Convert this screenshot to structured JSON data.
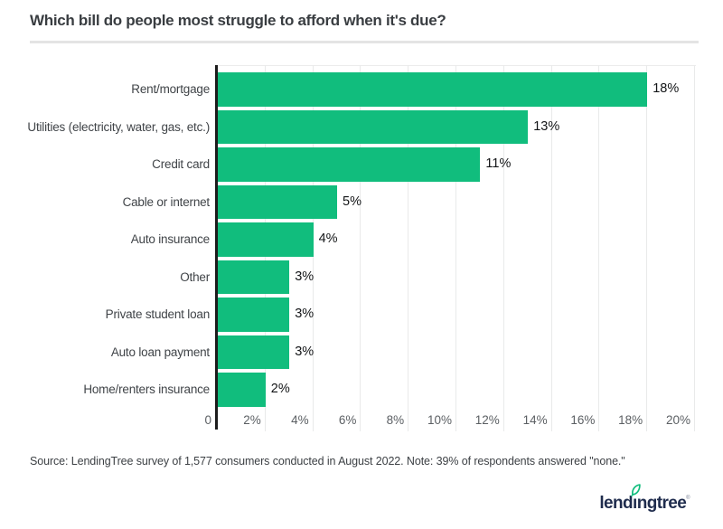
{
  "header": {
    "title": "Which bill do people most struggle to afford when it's due?"
  },
  "chart_data": {
    "type": "bar",
    "orientation": "horizontal",
    "title": "Which bill do people most struggle to afford when it's due?",
    "categories": [
      "Rent/mortgage",
      "Utilities (electricity, water, gas, etc.)",
      "Credit card",
      "Cable or internet",
      "Auto insurance",
      "Other",
      "Private student loan",
      "Auto loan payment",
      "Home/renters insurance"
    ],
    "values": [
      18,
      13,
      11,
      5,
      4,
      3,
      3,
      3,
      2
    ],
    "value_labels": [
      "18%",
      "13%",
      "11%",
      "5%",
      "4%",
      "3%",
      "3%",
      "3%",
      "2%"
    ],
    "xlabel": "",
    "ylabel": "",
    "xlim": [
      0,
      20
    ],
    "x_ticks": [
      "0",
      "2%",
      "4%",
      "6%",
      "8%",
      "10%",
      "12%",
      "14%",
      "16%",
      "18%",
      "20%"
    ],
    "grid": true,
    "legend": "none",
    "bar_color": "#11bd7d"
  },
  "footer": {
    "source_note": "Source: LendingTree survey of 1,577 consumers conducted in August 2022. Note: 39% of respondents answered \"none.\""
  },
  "branding": {
    "logo_part1": "lend",
    "logo_dotless_i": "ı",
    "logo_part2": "ngtree",
    "registered_mark": "®",
    "leaf_icon": "leaf-icon",
    "logo_color": "#1f2c4d",
    "leaf_color": "#11bd7d"
  },
  "colors": {
    "background": "#ffffff",
    "bar": "#11bd7d",
    "axis_line": "#1c1c1c",
    "gridline": "#e9eaea",
    "title_text": "#393d41",
    "category_text": "#404448",
    "tick_text": "#5b5f63",
    "value_text": "#131517",
    "divider": "#e4e4e4"
  }
}
